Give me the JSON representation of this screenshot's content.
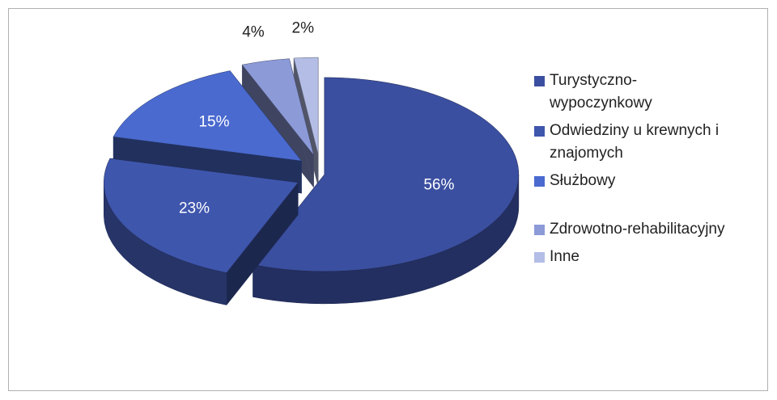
{
  "chart_data": {
    "type": "pie",
    "categories": [
      "Turystyczno-wypoczynkowy",
      "Odwiedziny u krewnych i znajomych",
      "Służbowy",
      "Zdrowotno-rehabilitacyjny",
      "Inne"
    ],
    "values": [
      56,
      23,
      15,
      4,
      2
    ],
    "value_labels": [
      "56%",
      "23%",
      "15%",
      "4%",
      "2%"
    ],
    "colors": [
      "#3b4fa0",
      "#3f56ad",
      "#4a6acf",
      "#8c9ad8",
      "#b4bde6"
    ]
  }
}
